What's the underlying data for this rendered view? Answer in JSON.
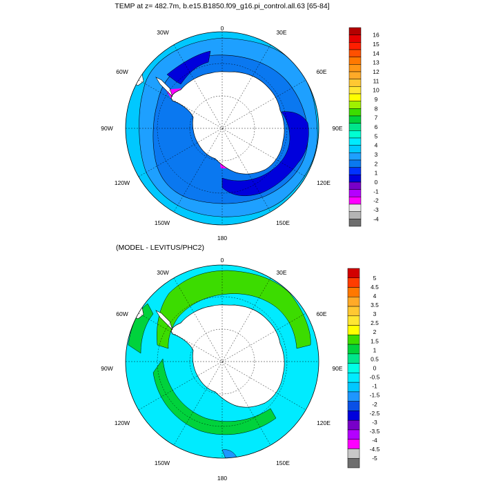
{
  "top_panel": {
    "title": "TEMP at z= 482.7m, b.e15.B1850.f09_g16.pi_control.all.63 [65-84]",
    "colorbar": {
      "colors": [
        "#6e6e6e",
        "#b4b4b4",
        "#e6e6e6",
        "#ff00ff",
        "#b400ff",
        "#7800c8",
        "#0000dc",
        "#0032ff",
        "#0a78f0",
        "#1ea0ff",
        "#00c8ff",
        "#00ebff",
        "#00ffd2",
        "#00e68c",
        "#00d23c",
        "#3cdc00",
        "#a0f000",
        "#ffff00",
        "#ffe632",
        "#ffc832",
        "#ffaa28",
        "#ff9614",
        "#ff7800",
        "#ff5000",
        "#ff1e00",
        "#e60000",
        "#b40000"
      ],
      "labels": [
        "-4",
        "-3",
        "-2",
        "-1",
        "0",
        "1",
        "2",
        "3",
        "4",
        "5",
        "6",
        "7",
        "8",
        "9",
        "10",
        "11",
        "12",
        "13",
        "14",
        "15",
        "16"
      ],
      "label_count": 21
    }
  },
  "bottom_panel": {
    "title": "(MODEL - LEVITUS/PHC2)",
    "colorbar": {
      "colors": [
        "#6e6e6e",
        "#c8c8c8",
        "#ff00ff",
        "#b400ff",
        "#7800c8",
        "#0000dc",
        "#0a50e6",
        "#1e96ff",
        "#00c8ff",
        "#00ebff",
        "#00ffe6",
        "#00e68c",
        "#00d23c",
        "#3cdc00",
        "#ffff00",
        "#ffe632",
        "#ffc832",
        "#ffaa28",
        "#ff7800",
        "#ff3c00",
        "#d20000"
      ],
      "labels": [
        "-5",
        "-4.5",
        "-4",
        "-3.5",
        "-3",
        "-2.5",
        "-2",
        "-1.5",
        "-1",
        "-0.5",
        "0",
        "0.5",
        "1",
        "1.5",
        "2",
        "2.5",
        "3",
        "3.5",
        "4",
        "4.5",
        "5"
      ]
    }
  },
  "lon_labels": {
    "n0": "0",
    "n30e": "30E",
    "n60e": "60E",
    "n90e": "90E",
    "n120e": "120E",
    "n150e": "150E",
    "n180": "180",
    "n150w": "150W",
    "n120w": "120W",
    "n90w": "90W",
    "n60w": "60W",
    "n30w": "30W"
  },
  "colors": {
    "ocean_top": "#1ea0ff",
    "ocean_bottom": "#00ebff",
    "land": "#ffffff"
  }
}
